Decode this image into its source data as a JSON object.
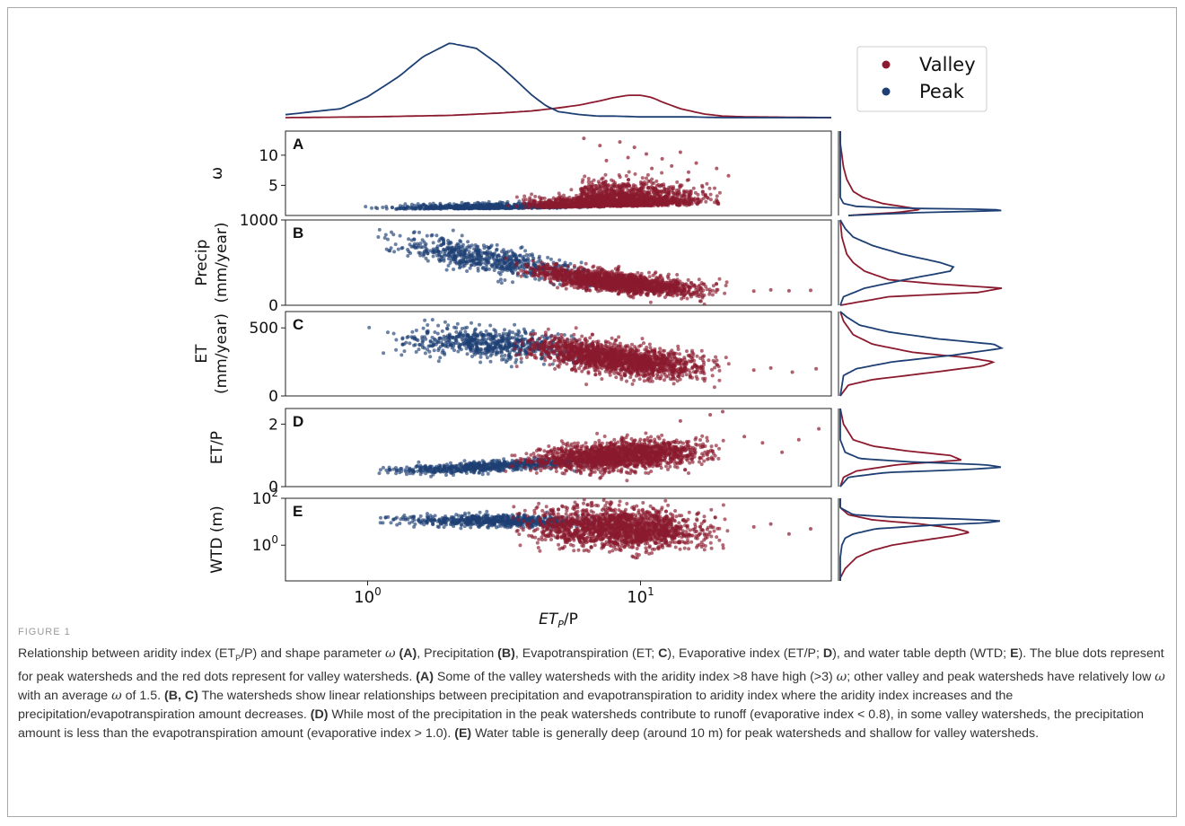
{
  "figure_label": "FIGURE 1",
  "caption": {
    "s1": "Relationship between aridity index (ET",
    "s1_sub": "P",
    "s2": "/P) and shape parameter ",
    "omega": "ω",
    "s3": " ",
    "ref_a": "(A)",
    "s4": ", Precipitation ",
    "ref_b": "(B)",
    "s5": ", Evapotranspiration (ET; ",
    "ref_c": "C",
    "s6": "), Evaporative index (ET/P; ",
    "ref_d": "D",
    "s7": "), and water table depth (WTD; ",
    "ref_e": "E",
    "s8": "). The blue dots represent for peak watersheds and the red dots represent for valley watersheds. ",
    "ref_a2": "(A)",
    "s9": " Some of the valley watersheds with the aridity index >8 have high (>3) ",
    "omega2": "ω",
    "s10": "; other valley and peak watersheds have relatively low ",
    "omega3": "ω",
    "s11": " with an average ",
    "omega4": "ω",
    "s12": " of 1.5. ",
    "ref_bc": "(B, C)",
    "s13": " The watersheds show linear relationships between precipitation and evapotranspiration to aridity index where the aridity index increases and the precipitation/evapotranspiration amount decreases. ",
    "ref_d2": "(D)",
    "s14": " While most of the precipitation in the peak watersheds contribute to runoff (evaporative index < 0.8), in some valley watersheds, the precipitation amount is less than the evapotranspiration amount (evaporative index > 1.0). ",
    "ref_e2": "(E)",
    "s15": " Water table is generally deep (around 10 m) for peak watersheds and shallow for valley watersheds."
  },
  "colors": {
    "valley": "#8b1a2e",
    "peak": "#1d3f73",
    "axis": "#222222"
  },
  "chart_data": {
    "type": "scatter",
    "xscale": "log",
    "xlim": [
      0.5,
      50
    ],
    "xticks": [
      1,
      10
    ],
    "xtick_labels": [
      {
        "base": "10",
        "exp": "0"
      },
      {
        "base": "10",
        "exp": "1"
      }
    ],
    "xlabel": {
      "main": "ET",
      "sub": "P",
      "tail": "/P"
    },
    "legend": {
      "position": "top-right",
      "entries": [
        {
          "name": "Valley",
          "color": "#8b1a2e"
        },
        {
          "name": "Peak",
          "color": "#1d3f73"
        }
      ]
    },
    "top_density": {
      "peak": {
        "x": [
          0.5,
          0.8,
          1.0,
          1.3,
          1.6,
          2.0,
          2.5,
          3.0,
          3.5,
          4.0,
          4.5,
          5.0,
          6.0,
          7.0,
          8.0,
          10.0,
          15.0,
          20.0,
          50.0
        ],
        "y": [
          0.04,
          0.12,
          0.28,
          0.55,
          0.82,
          1.0,
          0.93,
          0.72,
          0.5,
          0.3,
          0.16,
          0.08,
          0.04,
          0.02,
          0.02,
          0.01,
          0.01,
          0.0,
          0.0
        ]
      },
      "valley": {
        "x": [
          0.5,
          1.0,
          2.0,
          3.0,
          4.0,
          5.0,
          6.0,
          7.0,
          8.0,
          9.0,
          10.0,
          11.0,
          12.0,
          14.0,
          17.0,
          20.0,
          25.0,
          50.0
        ],
        "y": [
          0.0,
          0.01,
          0.03,
          0.06,
          0.09,
          0.13,
          0.17,
          0.22,
          0.27,
          0.3,
          0.3,
          0.27,
          0.21,
          0.12,
          0.05,
          0.02,
          0.01,
          0.0
        ]
      }
    },
    "panels": [
      {
        "id": "A",
        "ylabel": [
          "ω"
        ],
        "ylim": [
          0,
          14
        ],
        "yscale": "linear",
        "yticks": [
          5,
          10
        ],
        "ytick_labels": [
          "5",
          "10"
        ],
        "series": [
          {
            "name": "Valley",
            "x_range": [
              3,
              23
            ],
            "trend": [
              [
                3,
                1.2
              ],
              [
                23,
                1.8
              ]
            ],
            "spread": 0.8,
            "outliers": [
              [
                6.2,
                12.8
              ],
              [
                7.1,
                11.6
              ],
              [
                8.4,
                12.2
              ],
              [
                9.5,
                11.3
              ],
              [
                10.5,
                10.2
              ],
              [
                12.0,
                9.4
              ],
              [
                14.0,
                10.5
              ],
              [
                16.0,
                8.7
              ],
              [
                19.0,
                7.8
              ],
              [
                21.0,
                6.6
              ],
              [
                11.0,
                7.8
              ],
              [
                13.0,
                8.2
              ],
              [
                9.0,
                9.6
              ],
              [
                7.5,
                9.1
              ],
              [
                15.0,
                7.2
              ]
            ]
          },
          {
            "name": "Peak",
            "x_range": [
              0.9,
              8
            ],
            "trend": [
              [
                0.9,
                1.0
              ],
              [
                8,
                1.3
              ]
            ],
            "spread": 0.4,
            "outliers": []
          }
        ],
        "side_density": {
          "valley": {
            "y": [
              0,
              0.5,
              1.0,
              1.5,
              2.0,
              3.0,
              4.0,
              6.0,
              8.0,
              10.0,
              12.0,
              14.0
            ],
            "d": [
              0.05,
              0.35,
              0.5,
              0.38,
              0.26,
              0.14,
              0.08,
              0.04,
              0.02,
              0.01,
              0.0,
              0.0
            ]
          },
          "peak": {
            "y": [
              0,
              0.5,
              0.8,
              1.0,
              1.2,
              1.5,
              2.0,
              3.0,
              5.0,
              14.0
            ],
            "d": [
              0.05,
              0.5,
              1.0,
              0.95,
              0.4,
              0.1,
              0.02,
              0.0,
              0.0,
              0.0
            ]
          }
        }
      },
      {
        "id": "B",
        "ylabel": [
          "Precip",
          "(mm/year)"
        ],
        "ylim": [
          0,
          1000
        ],
        "yscale": "linear",
        "yticks": [
          0,
          1000
        ],
        "ytick_labels": [
          "0",
          "1000"
        ],
        "series": [
          {
            "name": "Valley",
            "x_range": [
              3,
              23
            ],
            "trend": [
              [
                3,
                480
              ],
              [
                6,
                320
              ],
              [
                10,
                240
              ],
              [
                15,
                190
              ],
              [
                23,
                150
              ]
            ],
            "spread": 55,
            "outliers": [
              [
                26,
                165
              ],
              [
                30,
                180
              ],
              [
                35,
                170
              ],
              [
                42,
                175
              ]
            ]
          },
          {
            "name": "Peak",
            "x_range": [
              0.9,
              9
            ],
            "trend": [
              [
                0.9,
                800
              ],
              [
                2,
                620
              ],
              [
                4,
                460
              ],
              [
                7,
                330
              ],
              [
                9,
                290
              ]
            ],
            "spread": 80,
            "outliers": []
          }
        ],
        "side_density": {
          "valley": {
            "y": [
              0,
              100,
              150,
              200,
              250,
              300,
              400,
              500,
              600,
              800,
              1000
            ],
            "d": [
              0.0,
              0.3,
              0.85,
              1.0,
              0.6,
              0.3,
              0.15,
              0.08,
              0.04,
              0.01,
              0.0
            ]
          },
          "peak": {
            "y": [
              0,
              100,
              200,
              300,
              400,
              450,
              500,
              600,
              700,
              800,
              900,
              1000
            ],
            "d": [
              0.0,
              0.02,
              0.15,
              0.4,
              0.68,
              0.7,
              0.62,
              0.38,
              0.2,
              0.08,
              0.03,
              0.0
            ]
          }
        }
      },
      {
        "id": "C",
        "ylabel": [
          "ET",
          "(mm/year)"
        ],
        "ylim": [
          0,
          620
        ],
        "yscale": "linear",
        "yticks": [
          0,
          500
        ],
        "ytick_labels": [
          "0",
          "500"
        ],
        "series": [
          {
            "name": "Valley",
            "x_range": [
              3,
              23
            ],
            "trend": [
              [
                3,
                380
              ],
              [
                6,
                310
              ],
              [
                10,
                250
              ],
              [
                15,
                215
              ],
              [
                23,
                185
              ]
            ],
            "spread": 55,
            "outliers": [
              [
                26,
                190
              ],
              [
                30,
                205
              ],
              [
                36,
                175
              ],
              [
                44,
                200
              ]
            ]
          },
          {
            "name": "Peak",
            "x_range": [
              0.9,
              9
            ],
            "trend": [
              [
                0.9,
                380
              ],
              [
                2,
                410
              ],
              [
                4,
                370
              ],
              [
                7,
                320
              ],
              [
                9,
                290
              ]
            ],
            "spread": 55,
            "outliers": []
          }
        ],
        "side_density": {
          "valley": {
            "y": [
              0,
              80,
              120,
              170,
              220,
              250,
              280,
              320,
              380,
              450,
              550,
              620
            ],
            "d": [
              0.0,
              0.05,
              0.2,
              0.55,
              0.88,
              0.95,
              0.8,
              0.45,
              0.2,
              0.08,
              0.02,
              0.0
            ]
          },
          "peak": {
            "y": [
              0,
              150,
              200,
              250,
              300,
              350,
              380,
              420,
              470,
              520,
              580,
              620
            ],
            "d": [
              0.0,
              0.02,
              0.1,
              0.32,
              0.7,
              1.0,
              0.95,
              0.6,
              0.3,
              0.12,
              0.04,
              0.0
            ]
          }
        }
      },
      {
        "id": "D",
        "ylabel": [
          "ET/P"
        ],
        "ylim": [
          0,
          2.5
        ],
        "yscale": "linear",
        "yticks": [
          0,
          2
        ],
        "ytick_labels": [
          "0",
          "2"
        ],
        "series": [
          {
            "name": "Valley",
            "x_range": [
              3,
              23
            ],
            "trend": [
              [
                3,
                0.8
              ],
              [
                6,
                0.92
              ],
              [
                10,
                1.02
              ],
              [
                15,
                1.1
              ],
              [
                23,
                1.2
              ]
            ],
            "spread": 0.22,
            "outliers": [
              [
                14,
                2.1
              ],
              [
                18,
                2.3
              ],
              [
                20,
                2.4
              ],
              [
                24,
                1.6
              ],
              [
                28,
                1.4
              ],
              [
                33,
                1.1
              ],
              [
                38,
                1.5
              ],
              [
                45,
                1.85
              ]
            ]
          },
          {
            "name": "Peak",
            "x_range": [
              0.9,
              9
            ],
            "trend": [
              [
                0.9,
                0.45
              ],
              [
                2,
                0.58
              ],
              [
                4,
                0.72
              ],
              [
                7,
                0.8
              ],
              [
                9,
                0.85
              ]
            ],
            "spread": 0.08,
            "outliers": []
          }
        ],
        "side_density": {
          "valley": {
            "y": [
              0,
              0.3,
              0.5,
              0.7,
              0.85,
              1.0,
              1.15,
              1.3,
              1.5,
              2.0,
              2.5
            ],
            "d": [
              0.0,
              0.02,
              0.1,
              0.35,
              0.75,
              0.68,
              0.4,
              0.2,
              0.08,
              0.02,
              0.0
            ]
          },
          "peak": {
            "y": [
              0,
              0.3,
              0.45,
              0.55,
              0.62,
              0.7,
              0.8,
              0.9,
              1.1,
              1.5,
              2.5
            ],
            "d": [
              0.0,
              0.05,
              0.28,
              0.8,
              1.0,
              0.9,
              0.4,
              0.12,
              0.03,
              0.0,
              0.0
            ]
          }
        }
      },
      {
        "id": "E",
        "ylabel": [
          "WTD (m)"
        ],
        "ylim": [
          0.03,
          100
        ],
        "yscale": "log",
        "yticks": [
          1,
          100
        ],
        "ytick_labels": [
          {
            "base": "10",
            "exp": "0"
          },
          {
            "base": "10",
            "exp": "2"
          }
        ],
        "series": [
          {
            "name": "Valley",
            "x_range": [
              3,
              23
            ],
            "trend": [
              [
                3,
                8
              ],
              [
                6,
                6
              ],
              [
                10,
                5
              ],
              [
                15,
                4.5
              ],
              [
                23,
                4
              ]
            ],
            "spread_log": 0.42,
            "outliers": [
              [
                26,
                6
              ],
              [
                30,
                8
              ],
              [
                35,
                3
              ],
              [
                42,
                5
              ]
            ]
          },
          {
            "name": "Peak",
            "x_range": [
              0.9,
              9
            ],
            "trend": [
              [
                0.9,
                11
              ],
              [
                2,
                12
              ],
              [
                4,
                11
              ],
              [
                7,
                10
              ],
              [
                9,
                10
              ]
            ],
            "spread_log": 0.13,
            "outliers": []
          }
        ],
        "side_density": {
          "valley": {
            "y": [
              0.04,
              0.1,
              0.3,
              0.6,
              1.0,
              1.5,
              2.5,
              3.5,
              5.0,
              8.0,
              12.0,
              20.0,
              40.0
            ],
            "d": [
              0.0,
              0.03,
              0.1,
              0.2,
              0.32,
              0.48,
              0.7,
              0.8,
              0.72,
              0.5,
              0.2,
              0.05,
              0.0
            ]
          },
          "peak": {
            "y": [
              0.3,
              1.0,
              2.0,
              3.0,
              5.0,
              7.0,
              9.0,
              11.0,
              13.0,
              16.0,
              20.0,
              40.0
            ],
            "d": [
              0.0,
              0.01,
              0.03,
              0.08,
              0.22,
              0.55,
              0.9,
              1.0,
              0.75,
              0.3,
              0.08,
              0.0
            ]
          }
        }
      }
    ]
  }
}
